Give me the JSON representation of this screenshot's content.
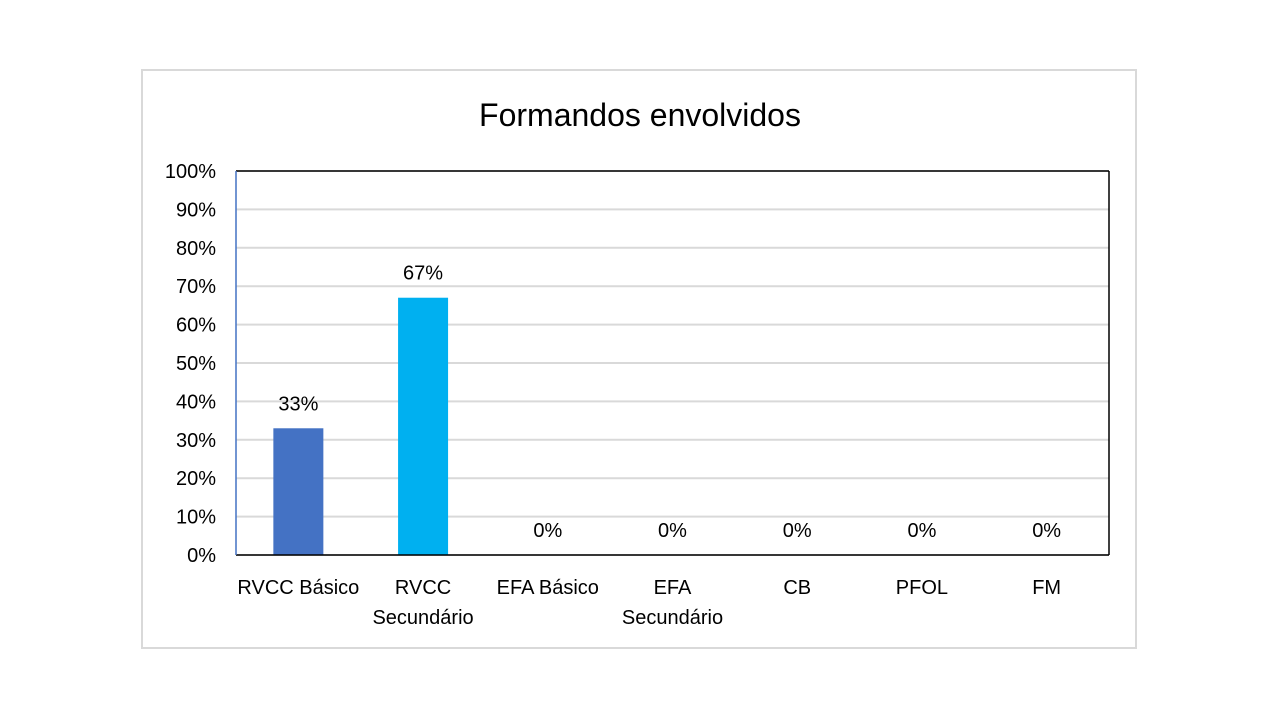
{
  "chart_data": {
    "type": "bar",
    "title": "Formandos envolvidos",
    "xlabel": "",
    "ylabel": "",
    "categories": [
      [
        "RVCC Básico"
      ],
      [
        "RVCC",
        "Secundário"
      ],
      [
        "EFA Básico"
      ],
      [
        "EFA",
        "Secundário"
      ],
      [
        "CB"
      ],
      [
        "PFOL"
      ],
      [
        "FM"
      ]
    ],
    "values": [
      33,
      67,
      0,
      0,
      0,
      0,
      0
    ],
    "data_labels": [
      "33%",
      "67%",
      "0%",
      "0%",
      "0%",
      "0%",
      "0%"
    ],
    "bar_colors": [
      "#4472c4",
      "#00b0f0",
      "#4472c4",
      "#4472c4",
      "#4472c4",
      "#4472c4",
      "#4472c4"
    ],
    "ylim": [
      0,
      100
    ],
    "y_ticks": [
      "0%",
      "10%",
      "20%",
      "30%",
      "40%",
      "50%",
      "60%",
      "70%",
      "80%",
      "90%",
      "100%"
    ],
    "grid": true,
    "gridline_color": "#d9d9d9",
    "axis_color": "#4472c4"
  }
}
